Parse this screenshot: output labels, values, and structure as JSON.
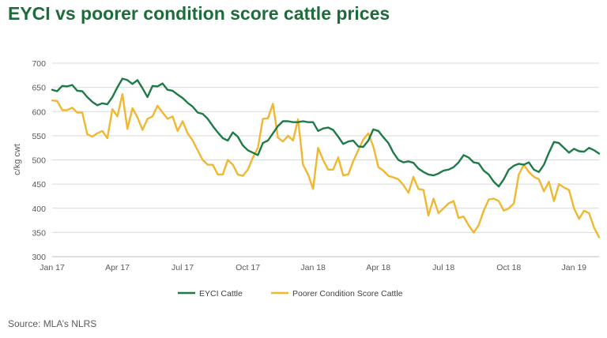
{
  "title": "EYCI vs poorer condition score cattle prices",
  "source": "Source: MLA’s NLRS",
  "colors": {
    "eyci": "#1e7a46",
    "poorer": "#f0b72f",
    "grid": "#d9d9d9",
    "axis": "#bfbfbf"
  },
  "chart_data": {
    "type": "line",
    "title": "EYCI vs poorer condition score cattle prices",
    "ylabel": "c/kg cwt",
    "xlabel": "",
    "ylim": [
      300,
      700
    ],
    "yticks": [
      300,
      350,
      400,
      450,
      500,
      550,
      600,
      650,
      700
    ],
    "xticks": [
      {
        "label": "Jan 17",
        "week": 0
      },
      {
        "label": "Apr 17",
        "week": 13
      },
      {
        "label": "Jul 17",
        "week": 26
      },
      {
        "label": "Oct 17",
        "week": 39
      },
      {
        "label": "Jan 18",
        "week": 52
      },
      {
        "label": "Apr 18",
        "week": 65
      },
      {
        "label": "Jul 18",
        "week": 78
      },
      {
        "label": "Oct 18",
        "week": 91
      },
      {
        "label": "Jan 19",
        "week": 104
      }
    ],
    "grid": "horizontal",
    "legend": "bottom",
    "x_unit": "weeks from Jan 17",
    "series": [
      {
        "name": "EYCI Cattle",
        "color": "#1e7a46",
        "x": [
          0,
          1,
          2,
          3,
          4,
          5,
          6,
          7,
          8,
          9,
          10,
          11,
          12,
          13,
          14,
          15,
          16,
          17,
          18,
          19,
          20,
          21,
          22,
          23,
          24,
          25,
          26,
          27,
          28,
          29,
          30,
          31,
          32,
          33,
          34,
          35,
          36,
          37,
          38,
          39,
          40,
          41,
          42,
          43,
          44,
          45,
          46,
          47,
          48,
          49,
          50,
          51,
          52,
          53,
          54,
          55,
          56,
          57,
          58,
          59,
          60,
          61,
          62,
          63,
          64,
          65,
          66,
          67,
          68,
          69,
          70,
          71,
          72,
          73,
          74,
          75,
          76,
          77,
          78,
          79,
          80,
          81,
          82,
          83,
          84,
          85,
          86,
          87,
          88,
          89,
          90,
          91,
          92,
          93,
          94,
          95,
          96,
          97,
          98,
          99,
          100,
          101,
          102,
          103,
          104,
          105,
          106,
          107,
          108,
          109
        ],
        "values": [
          645,
          642,
          653,
          652,
          655,
          643,
          642,
          630,
          620,
          613,
          617,
          615,
          630,
          650,
          668,
          665,
          657,
          665,
          648,
          630,
          653,
          652,
          658,
          645,
          643,
          635,
          628,
          618,
          610,
          598,
          595,
          585,
          570,
          557,
          545,
          540,
          557,
          548,
          530,
          520,
          515,
          510,
          535,
          540,
          555,
          570,
          580,
          580,
          578,
          578,
          580,
          578,
          578,
          560,
          565,
          567,
          562,
          548,
          533,
          538,
          540,
          528,
          527,
          540,
          563,
          560,
          547,
          535,
          515,
          500,
          495,
          497,
          494,
          482,
          475,
          470,
          468,
          472,
          478,
          480,
          485,
          495,
          510,
          505,
          495,
          493,
          478,
          470,
          455,
          445,
          460,
          480,
          488,
          492,
          490,
          495,
          480,
          475,
          490,
          515,
          537,
          535,
          525,
          515,
          523,
          518,
          517,
          525,
          520,
          513
        ]
      },
      {
        "name": "Poorer Condition Score Cattle",
        "color": "#f0b72f",
        "x": [
          0,
          1,
          2,
          3,
          4,
          5,
          6,
          7,
          8,
          9,
          10,
          11,
          12,
          13,
          14,
          15,
          16,
          17,
          18,
          19,
          20,
          21,
          22,
          23,
          24,
          25,
          26,
          27,
          28,
          29,
          30,
          31,
          32,
          33,
          34,
          35,
          36,
          37,
          38,
          39,
          40,
          41,
          42,
          43,
          44,
          45,
          46,
          47,
          48,
          49,
          50,
          51,
          52,
          53,
          54,
          55,
          56,
          57,
          58,
          59,
          60,
          61,
          62,
          63,
          64,
          65,
          66,
          67,
          68,
          69,
          70,
          71,
          72,
          73,
          74,
          75,
          76,
          77,
          78,
          79,
          80,
          81,
          82,
          83,
          84,
          85,
          86,
          87,
          88,
          89,
          90,
          91,
          92,
          93,
          94,
          95,
          96,
          97,
          98,
          99,
          100,
          101,
          102,
          103,
          104,
          105,
          106,
          107,
          108,
          109
        ],
        "values": [
          623,
          622,
          603,
          603,
          608,
          598,
          598,
          553,
          548,
          555,
          560,
          545,
          605,
          590,
          636,
          564,
          607,
          588,
          562,
          585,
          590,
          612,
          598,
          585,
          590,
          560,
          580,
          555,
          540,
          520,
          500,
          490,
          490,
          470,
          470,
          500,
          490,
          470,
          467,
          480,
          505,
          525,
          585,
          586,
          616,
          546,
          538,
          550,
          540,
          584,
          490,
          470,
          440,
          525,
          500,
          480,
          480,
          505,
          468,
          470,
          497,
          520,
          542,
          555,
          528,
          485,
          478,
          467,
          464,
          460,
          448,
          432,
          465,
          440,
          438,
          385,
          420,
          390,
          400,
          410,
          415,
          380,
          383,
          365,
          350,
          365,
          395,
          418,
          420,
          415,
          395,
          400,
          410,
          470,
          490,
          475,
          465,
          460,
          435,
          455,
          415,
          450,
          443,
          438,
          400,
          378,
          395,
          390,
          360,
          340
        ]
      }
    ]
  },
  "legend": [
    {
      "label": "EYCI Cattle",
      "color": "#1e7a46"
    },
    {
      "label": "Poorer Condition Score Cattle",
      "color": "#f0b72f"
    }
  ]
}
